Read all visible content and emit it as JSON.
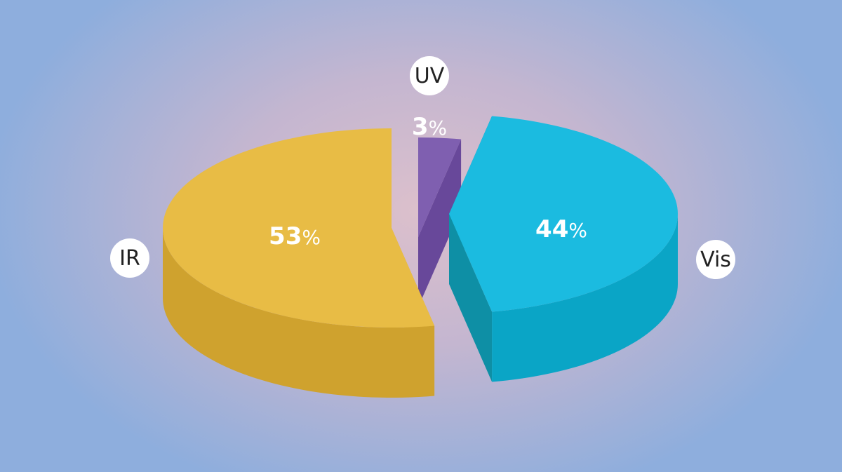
{
  "chart_data": {
    "type": "pie",
    "style": "3d-exploded",
    "slices": [
      {
        "label": "IR",
        "value": 53,
        "num": "53",
        "sign": "%",
        "top": "#e8bc45",
        "side": "#cfa22e",
        "cut": "#d9ad36"
      },
      {
        "label": "Vis",
        "value": 44,
        "num": "44",
        "sign": "%",
        "top": "#1bbbe0",
        "side": "#0aa5c6",
        "cut": "#0e8fa5"
      },
      {
        "label": "UV",
        "value": 3,
        "num": "3",
        "sign": "%",
        "top": "#7f5fb0",
        "side": "#5c3f8a",
        "cut": "#68489a"
      }
    ]
  }
}
